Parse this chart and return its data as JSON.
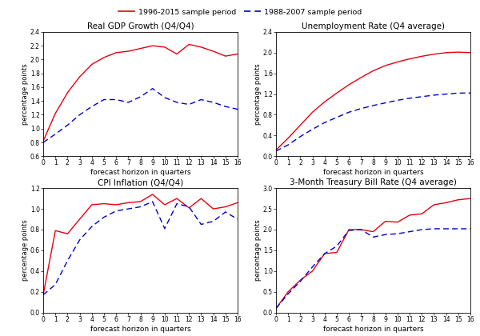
{
  "legend_red": "1996-2015 sample period",
  "legend_blue": "1988-2007 sample period",
  "red_color": "#e8000d",
  "blue_color": "#0000cc",
  "xlabel": "forecast horizon in quarters",
  "ylabel": "percentage points",
  "subplots": [
    {
      "title": "Real GDP Growth (Q4/Q4)",
      "ylim": [
        0.6,
        2.4
      ],
      "yticks": [
        0.6,
        0.8,
        1.0,
        1.2,
        1.4,
        1.6,
        1.8,
        2.0,
        2.2,
        2.4
      ],
      "red": [
        0.82,
        1.22,
        1.52,
        1.75,
        1.93,
        2.03,
        2.1,
        2.12,
        2.16,
        2.2,
        2.18,
        2.08,
        2.22,
        2.18,
        2.12,
        2.05,
        2.08
      ],
      "blue": [
        0.8,
        0.92,
        1.05,
        1.2,
        1.32,
        1.42,
        1.42,
        1.38,
        1.46,
        1.58,
        1.45,
        1.38,
        1.35,
        1.42,
        1.38,
        1.32,
        1.28
      ]
    },
    {
      "title": "Unemployment Rate (Q4 average)",
      "ylim": [
        0.0,
        2.4
      ],
      "yticks": [
        0.0,
        0.4,
        0.8,
        1.2,
        1.6,
        2.0,
        2.4
      ],
      "red": [
        0.12,
        0.35,
        0.6,
        0.85,
        1.05,
        1.22,
        1.38,
        1.52,
        1.65,
        1.75,
        1.82,
        1.88,
        1.93,
        1.97,
        2.0,
        2.01,
        2.0
      ],
      "blue": [
        0.1,
        0.22,
        0.38,
        0.52,
        0.65,
        0.75,
        0.85,
        0.92,
        0.98,
        1.03,
        1.08,
        1.12,
        1.15,
        1.18,
        1.2,
        1.22,
        1.22
      ]
    },
    {
      "title": "CPI Inflation (Q4/Q4)",
      "ylim": [
        0.0,
        1.2
      ],
      "yticks": [
        0.0,
        0.2,
        0.4,
        0.6,
        0.8,
        1.0,
        1.2
      ],
      "red": [
        0.17,
        0.79,
        0.76,
        0.9,
        1.04,
        1.05,
        1.04,
        1.06,
        1.07,
        1.14,
        1.04,
        1.1,
        1.01,
        1.1,
        1.0,
        1.02,
        1.06
      ],
      "blue": [
        0.17,
        0.27,
        0.5,
        0.7,
        0.83,
        0.92,
        0.98,
        1.0,
        1.02,
        1.07,
        0.81,
        1.05,
        1.02,
        0.85,
        0.88,
        0.97,
        0.9
      ]
    },
    {
      "title": "3-Month Treasury Bill Rate (Q4 average)",
      "ylim": [
        0.0,
        3.0
      ],
      "yticks": [
        0.0,
        0.5,
        1.0,
        1.5,
        2.0,
        2.5,
        3.0
      ],
      "red": [
        0.1,
        0.5,
        0.78,
        1.0,
        1.42,
        1.45,
        2.0,
        2.0,
        1.95,
        2.2,
        2.18,
        2.35,
        2.38,
        2.6,
        2.65,
        2.72,
        2.75
      ],
      "blue": [
        0.1,
        0.45,
        0.75,
        1.1,
        1.42,
        1.6,
        1.98,
        2.0,
        1.82,
        1.88,
        1.9,
        1.95,
        2.0,
        2.02,
        2.02,
        2.02,
        2.02
      ]
    }
  ],
  "xticks": [
    0,
    1,
    2,
    3,
    4,
    5,
    6,
    7,
    8,
    9,
    10,
    11,
    12,
    13,
    14,
    15,
    16
  ],
  "xlim": [
    0,
    16
  ]
}
